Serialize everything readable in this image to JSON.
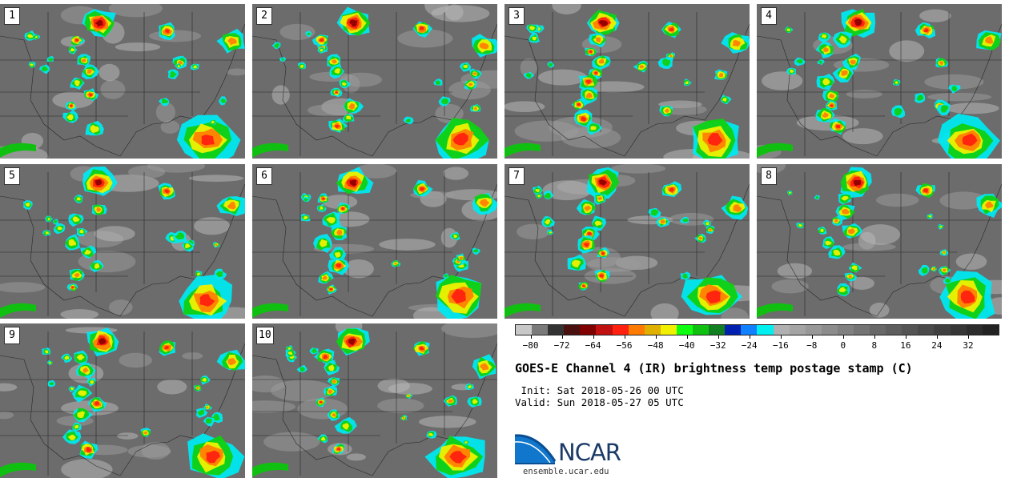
{
  "title": "GOES-E Channel 4 (IR) brightness temp postage stamp (C)",
  "init_line": " Init: Sat 2018-05-26 00 UTC",
  "valid_line": "Valid: Sun 2018-05-27 05 UTC",
  "logo": {
    "text": "NCAR",
    "url": "ensemble.ucar.edu"
  },
  "panels": [
    {
      "label": "1"
    },
    {
      "label": "2"
    },
    {
      "label": "3"
    },
    {
      "label": "4"
    },
    {
      "label": "5"
    },
    {
      "label": "6"
    },
    {
      "label": "7"
    },
    {
      "label": "8"
    },
    {
      "label": "9"
    },
    {
      "label": "10"
    }
  ],
  "colorbar": {
    "colors": [
      "#c8c8c8",
      "#7a7a7a",
      "#333333",
      "#4a1010",
      "#800000",
      "#c01010",
      "#ff2010",
      "#ff7a00",
      "#e0b000",
      "#f0f000",
      "#10ff10",
      "#10c010",
      "#108020",
      "#0020b0",
      "#1080ff",
      "#00f0f0",
      "#b0b0b0",
      "#a4a4a4",
      "#989898",
      "#8c8c8c",
      "#808080",
      "#747474",
      "#686868",
      "#5e5e5e",
      "#545454",
      "#4a4a4a",
      "#404040",
      "#363636",
      "#2c2c2c",
      "#222222"
    ],
    "min": -84,
    "max": 40,
    "ticks": [
      "−80",
      "−72",
      "−64",
      "−56",
      "−48",
      "−40",
      "−32",
      "−24",
      "−16",
      "−8",
      "0",
      "8",
      "16",
      "24",
      "32"
    ],
    "tick_values": [
      -80,
      -72,
      -64,
      -56,
      -48,
      -40,
      -32,
      -24,
      -16,
      -8,
      0,
      8,
      16,
      24,
      32
    ]
  }
}
